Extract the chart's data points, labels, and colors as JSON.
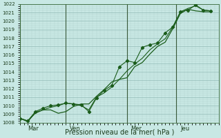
{
  "xlabel": "Pression niveau de la mer( hPa )",
  "background_color": "#c8e8e4",
  "grid_major_color": "#90b8b4",
  "grid_minor_color": "#b0d4d0",
  "line_color": "#1a5c1a",
  "ylim": [
    1008,
    1022
  ],
  "xlim": [
    0,
    13
  ],
  "yticks": [
    1008,
    1009,
    1010,
    1011,
    1012,
    1013,
    1014,
    1015,
    1016,
    1017,
    1018,
    1019,
    1020,
    1021,
    1022
  ],
  "day_labels": [
    "Mar",
    "Ven",
    "Mer",
    "Jeu"
  ],
  "day_positions": [
    0.5,
    3.25,
    7.25,
    10.5
  ],
  "vline_positions": [
    0.0,
    3.0,
    7.0,
    10.2
  ],
  "line1_x": [
    0.0,
    0.5,
    1.0,
    1.5,
    2.0,
    2.5,
    3.0,
    3.5,
    4.0,
    4.5,
    5.0,
    5.5,
    6.0,
    6.5,
    7.0,
    7.5,
    8.0,
    8.5,
    9.0,
    9.5,
    10.0,
    10.5,
    11.0,
    11.5,
    12.0,
    12.5
  ],
  "line1_y": [
    1008.5,
    1008.1,
    1009.2,
    1009.5,
    1009.5,
    1009.1,
    1009.3,
    1009.9,
    1010.2,
    1010.2,
    1011.1,
    1011.9,
    1012.8,
    1013.1,
    1013.3,
    1014.6,
    1015.1,
    1016.1,
    1017.0,
    1017.5,
    1019.1,
    1020.9,
    1021.4,
    1021.2,
    1021.1,
    1021.1
  ],
  "line2_x": [
    0.0,
    0.5,
    1.0,
    1.5,
    2.0,
    2.5,
    3.0,
    3.5,
    4.0,
    4.5,
    5.0,
    5.5,
    6.0,
    6.5,
    7.0,
    7.5,
    8.0,
    8.5,
    9.0,
    9.5,
    10.0,
    10.5,
    11.0,
    11.5,
    12.0,
    12.5
  ],
  "line2_y": [
    1008.5,
    1008.2,
    1009.3,
    1009.7,
    1010.0,
    1010.1,
    1010.3,
    1010.2,
    1010.1,
    1009.3,
    1010.9,
    1011.8,
    1012.4,
    1014.6,
    1015.3,
    1015.1,
    1016.9,
    1017.2,
    1017.4,
    1018.6,
    1019.3,
    1021.1,
    1021.3,
    1021.9,
    1021.3,
    1021.2
  ],
  "line3_x": [
    0.0,
    0.5,
    1.0,
    1.5,
    2.0,
    2.5,
    3.0,
    3.5,
    4.0,
    4.5,
    5.0,
    5.5,
    6.0,
    6.5,
    7.0,
    7.5,
    8.0,
    8.5,
    9.0,
    9.5,
    10.0,
    10.5,
    11.0,
    11.5,
    12.0,
    12.5
  ],
  "line3_y": [
    1008.5,
    1008.2,
    1009.1,
    1009.5,
    1009.8,
    1010.0,
    1010.3,
    1010.2,
    1010.0,
    1009.5,
    1011.0,
    1011.5,
    1012.2,
    1013.1,
    1014.1,
    1014.9,
    1015.6,
    1016.6,
    1017.3,
    1017.9,
    1019.3,
    1021.1,
    1021.5,
    1021.8,
    1021.3,
    1021.2
  ]
}
